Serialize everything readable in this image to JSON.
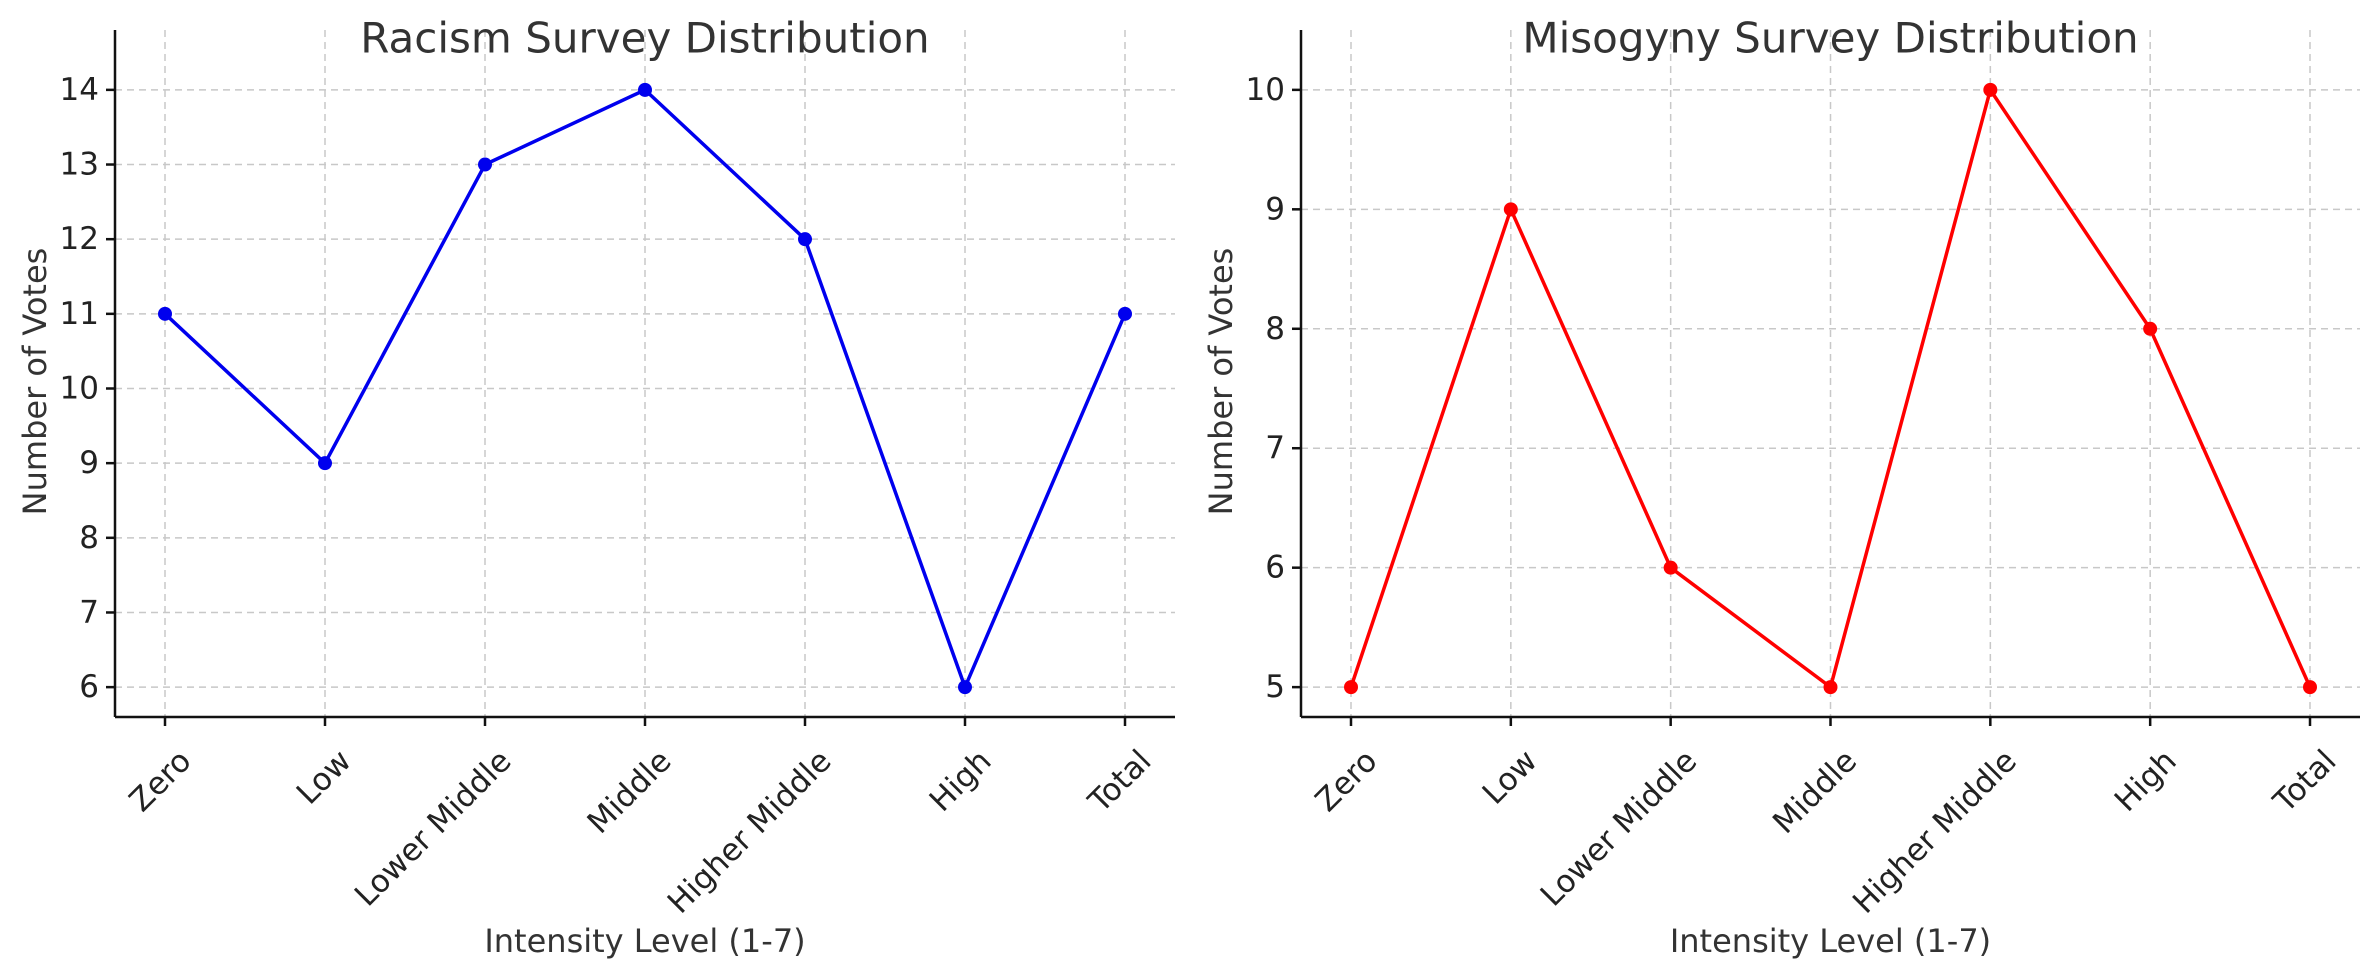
{
  "chart_data": [
    {
      "type": "line",
      "title": "Racism Survey Distribution",
      "xlabel": "Intensity Level (1-7)",
      "ylabel": "Number of Votes",
      "categories": [
        "Zero",
        "Low",
        "Lower Middle",
        "Middle",
        "Higher Middle",
        "High",
        "Total"
      ],
      "series": [
        {
          "name": "Racism",
          "values": [
            11,
            9,
            13,
            14,
            12,
            6,
            11
          ],
          "color": "#0000ee"
        }
      ],
      "ylim": [
        5.6,
        14.4
      ],
      "yticks": [
        6,
        7,
        8,
        9,
        10,
        11,
        12,
        13,
        14
      ],
      "grid": true,
      "legend": "none"
    },
    {
      "type": "line",
      "title": "Misogyny Survey Distribution",
      "xlabel": "Intensity Level (1-7)",
      "ylabel": "Number of Votes",
      "categories": [
        "Zero",
        "Low",
        "Lower Middle",
        "Middle",
        "Higher Middle",
        "High",
        "Total"
      ],
      "series": [
        {
          "name": "Misogyny",
          "values": [
            5,
            9,
            6,
            5,
            10,
            8,
            5
          ],
          "color": "#ff0000"
        }
      ],
      "ylim": [
        4.75,
        10.25
      ],
      "yticks": [
        5,
        6,
        7,
        8,
        9,
        10
      ],
      "grid": true,
      "legend": "none"
    }
  ]
}
